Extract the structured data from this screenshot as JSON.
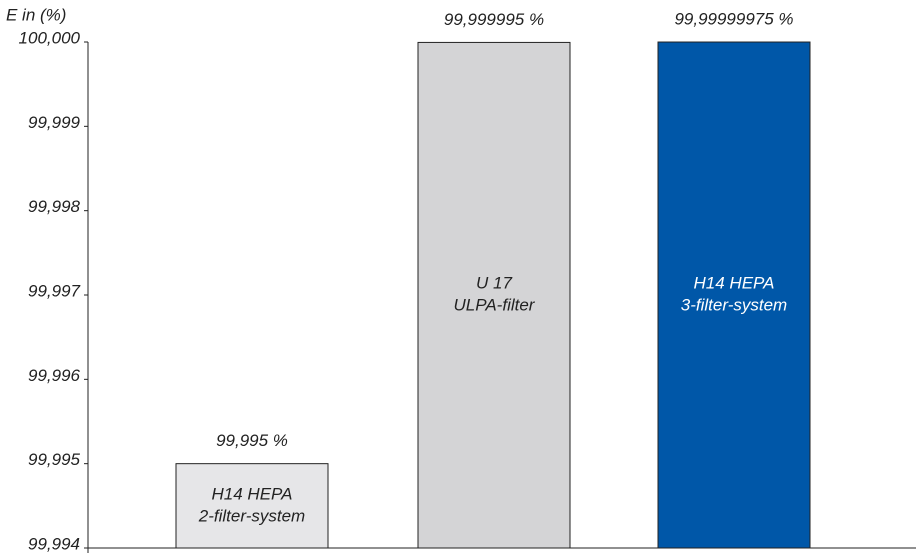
{
  "chart_data": {
    "type": "bar",
    "y_label": "E in (%)",
    "categories": [
      [
        "H14 HEPA",
        "2-filter-system"
      ],
      [
        "U 17",
        "ULPA-filter"
      ],
      [
        "H14 HEPA",
        "3-filter-system"
      ]
    ],
    "values": [
      99.995,
      99.999995,
      99.99999975
    ],
    "value_labels": [
      "99,995 %",
      "99,999995 %",
      "99,99999975 %"
    ],
    "colors": [
      "#e6e6e8",
      "#d4d4d6",
      "#0057a8"
    ],
    "label_colors": [
      "#222222",
      "#222222",
      "#ffffff"
    ],
    "ylim": [
      99.994,
      100.0
    ],
    "yticks": [
      {
        "value": 99.994,
        "label": "99,994"
      },
      {
        "value": 99.995,
        "label": "99,995"
      },
      {
        "value": 99.996,
        "label": "99,996"
      },
      {
        "value": 99.997,
        "label": "99,997"
      },
      {
        "value": 99.998,
        "label": "99,998"
      },
      {
        "value": 99.999,
        "label": "99,999"
      },
      {
        "value": 100.0,
        "label": "100,000"
      }
    ]
  }
}
